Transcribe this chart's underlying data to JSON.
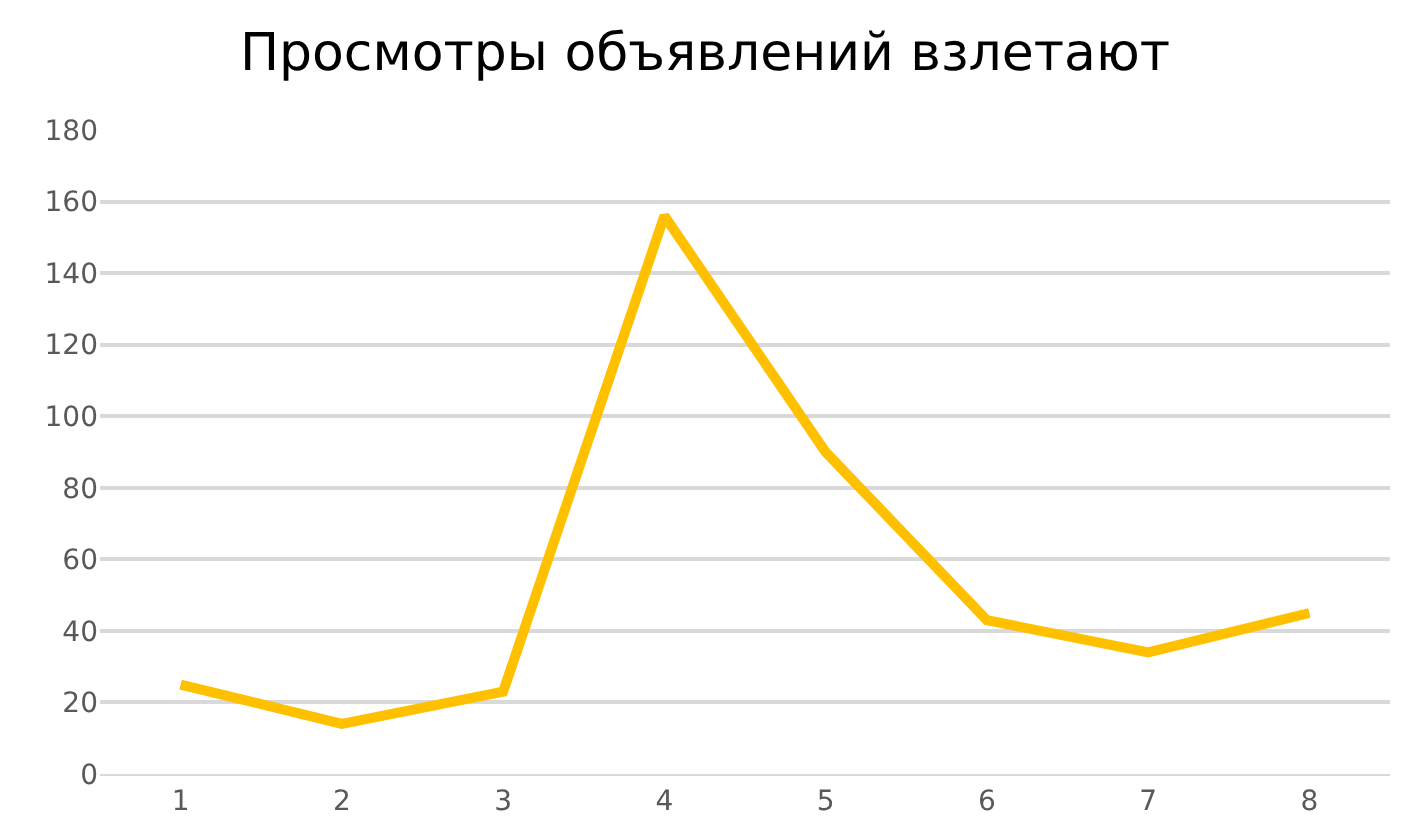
{
  "chart_data": {
    "type": "line",
    "title": "Просмотры объявлений взлетают",
    "categories": [
      "1",
      "2",
      "3",
      "4",
      "5",
      "6",
      "7",
      "8"
    ],
    "series": [
      {
        "color": "#ffc000",
        "values": [
          25,
          14,
          23,
          156,
          90,
          43,
          34,
          45
        ]
      }
    ],
    "ylim": [
      0,
      180
    ],
    "yticks": [
      0,
      20,
      40,
      60,
      80,
      100,
      120,
      140,
      160,
      180
    ],
    "grid": "y",
    "legend": false,
    "marker": "none",
    "line_style": "solid"
  }
}
